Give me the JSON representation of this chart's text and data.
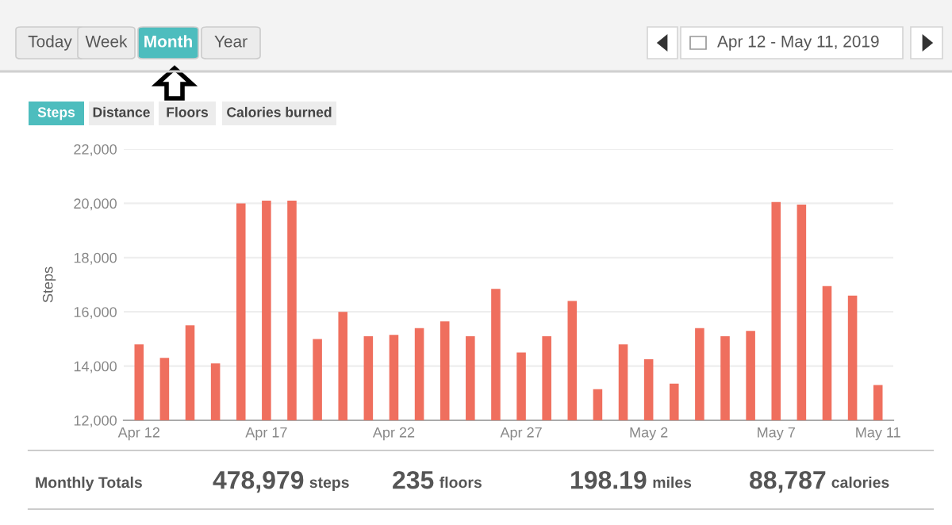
{
  "chart_data": {
    "type": "bar",
    "ylabel": "Steps",
    "categories": [
      "Apr 12",
      null,
      null,
      null,
      null,
      "Apr 17",
      null,
      null,
      null,
      null,
      "Apr 22",
      null,
      null,
      null,
      null,
      "Apr 27",
      null,
      null,
      null,
      null,
      "May 2",
      null,
      null,
      null,
      null,
      "May 7",
      null,
      null,
      null,
      "May 11"
    ],
    "series": [
      {
        "color": "#ef6f5e",
        "values": [
          14800,
          14300,
          15500,
          14100,
          20000,
          20100,
          20100,
          15000,
          16000,
          15100,
          15150,
          15400,
          15650,
          15100,
          16850,
          14500,
          15100,
          16400,
          13150,
          14800,
          14250,
          13350,
          15400,
          15100,
          15300,
          20050,
          19950,
          16950,
          16600,
          13300
        ]
      }
    ],
    "ylim": [
      12000,
      22000
    ],
    "yticks": [
      {
        "value": 12000,
        "label": "12,000"
      },
      {
        "value": 14000,
        "label": "14,000"
      },
      {
        "value": 16000,
        "label": "16,000"
      },
      {
        "value": 18000,
        "label": "18,000"
      },
      {
        "value": 20000,
        "label": "20,000"
      },
      {
        "value": 22000,
        "label": "22,000"
      }
    ],
    "grid": "y",
    "legend": false,
    "annotations": [
      "Today",
      "Week",
      "Month",
      "Year",
      "Apr 12 - May 11, 2019",
      "Steps",
      "Distance",
      "Floors",
      "Calories burned",
      "Monthly Totals",
      "478,979",
      "steps",
      "235",
      "floors",
      "198.19",
      "miles",
      "88,787",
      "calories"
    ]
  }
}
